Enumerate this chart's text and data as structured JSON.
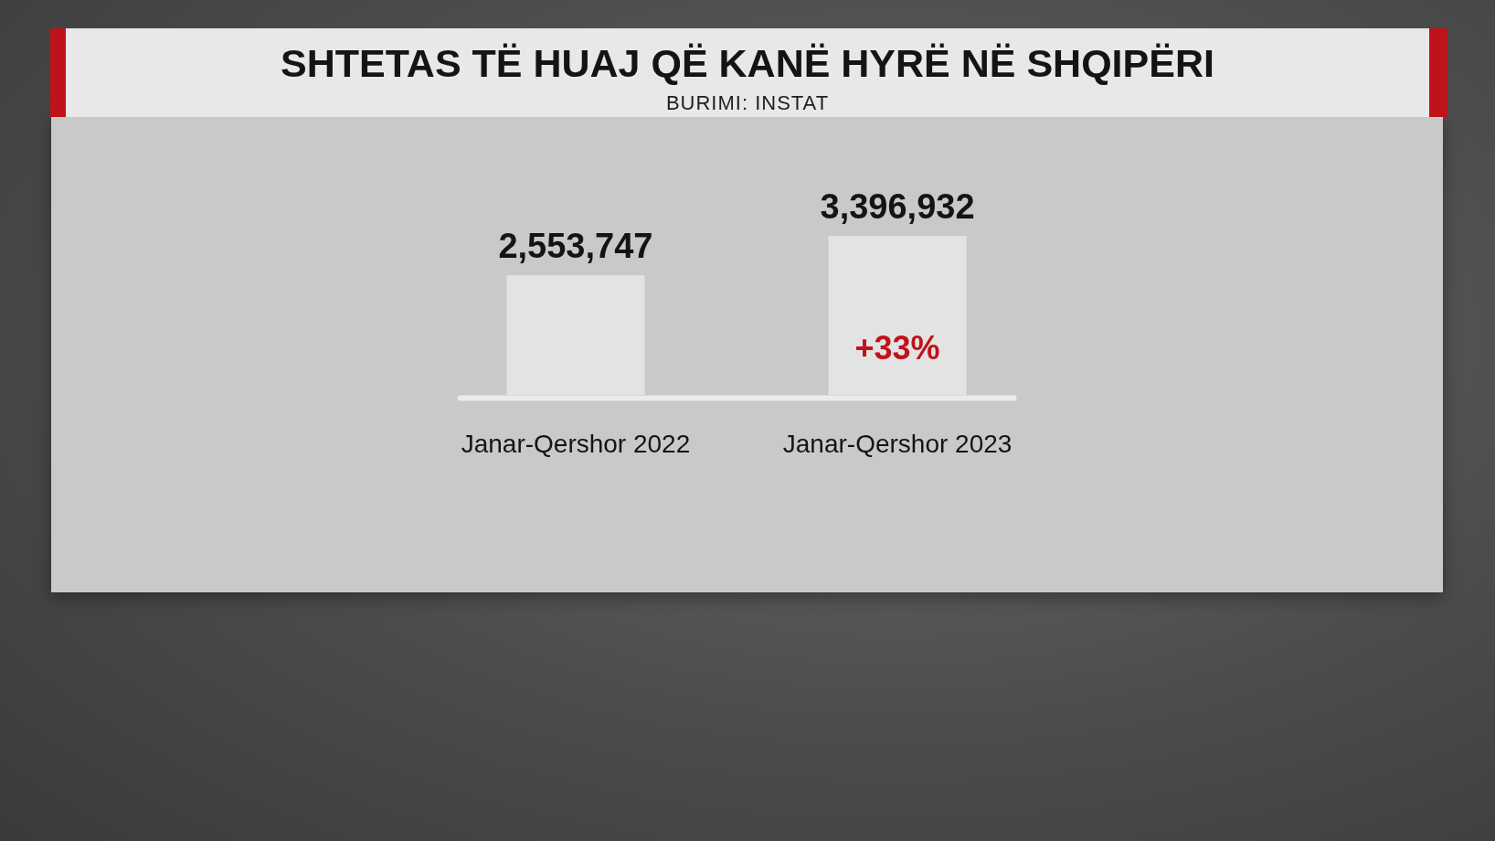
{
  "chart_data": {
    "type": "bar",
    "title": "SHTETAS TË HUAJ QË KANË HYRË NË SHQIPËRI",
    "subtitle": "BURIMI: INSTAT",
    "categories": [
      "Janar-Qershor 2022",
      "Janar-Qershor 2023"
    ],
    "values": [
      2553747,
      3396932
    ],
    "value_labels": [
      "2,553,747",
      "3,396,932"
    ],
    "color": "#e3e3e3",
    "tick_labels": "x",
    "annotations": [
      "+33%"
    ]
  }
}
